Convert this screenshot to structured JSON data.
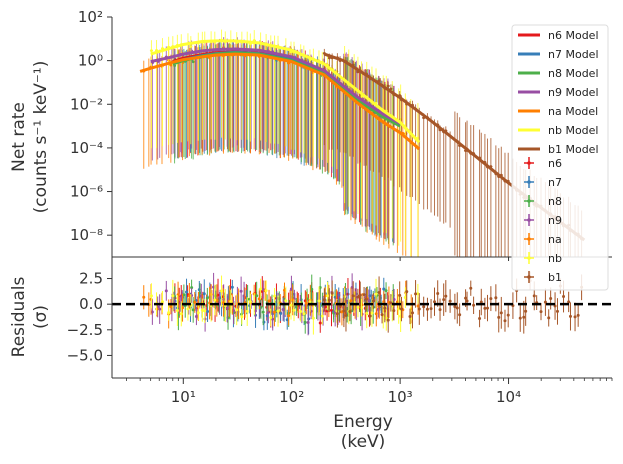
{
  "chart_data": [
    {
      "type": "line",
      "panel": "spectrum",
      "ylabel_line1": "Net rate",
      "ylabel_line2": "(counts s⁻¹ keV⁻¹)",
      "x_scale": "log",
      "y_scale": "log",
      "xlim": [
        2.2,
        90000
      ],
      "ylim": [
        1e-09,
        100
      ],
      "y_ticks": [
        {
          "value": 100,
          "label": "10²"
        },
        {
          "value": 1,
          "label": "10⁰"
        },
        {
          "value": 0.01,
          "label": "10⁻²"
        },
        {
          "value": 0.0001,
          "label": "10⁻⁴"
        },
        {
          "value": 1e-06,
          "label": "10⁻⁶"
        },
        {
          "value": 1e-08,
          "label": "10⁻⁸"
        }
      ],
      "legend_position": "top-right",
      "model_legend": [
        {
          "name": "n6 Model",
          "color": "#e41a1c"
        },
        {
          "name": "n7 Model",
          "color": "#377eb8"
        },
        {
          "name": "n8 Model",
          "color": "#4daf4a"
        },
        {
          "name": "n9 Model",
          "color": "#984ea3"
        },
        {
          "name": "na Model",
          "color": "#ff7f00"
        },
        {
          "name": "nb Model",
          "color": "#ffff33"
        },
        {
          "name": "b1 Model",
          "color": "#a65628"
        }
      ],
      "data_legend": [
        {
          "name": "n6",
          "color": "#e41a1c"
        },
        {
          "name": "n7",
          "color": "#377eb8"
        },
        {
          "name": "n8",
          "color": "#4daf4a"
        },
        {
          "name": "n9",
          "color": "#984ea3"
        },
        {
          "name": "na",
          "color": "#ff7f00"
        },
        {
          "name": "nb",
          "color": "#ffff33"
        },
        {
          "name": "b1",
          "color": "#a65628"
        }
      ],
      "series": [
        {
          "name": "n6 Model",
          "color": "#e41a1c",
          "x": [
            8,
            10,
            15,
            20,
            30,
            50,
            100,
            200,
            400,
            700,
            1000
          ],
          "y": [
            0.9,
            1.3,
            1.9,
            2.3,
            2.5,
            2.2,
            1.2,
            0.3,
            0.02,
            0.003,
            0.0012
          ]
        },
        {
          "name": "n7 Model",
          "color": "#377eb8",
          "x": [
            8,
            10,
            15,
            20,
            30,
            50,
            100,
            200,
            400,
            700,
            1000
          ],
          "y": [
            0.8,
            1.1,
            1.7,
            2.1,
            2.4,
            2.1,
            1.1,
            0.28,
            0.018,
            0.0028,
            0.0011
          ]
        },
        {
          "name": "n8 Model",
          "color": "#4daf4a",
          "x": [
            8,
            10,
            15,
            20,
            30,
            50,
            100,
            200,
            400,
            700,
            1000
          ],
          "y": [
            0.7,
            1.0,
            1.6,
            2.0,
            2.3,
            2.0,
            1.0,
            0.26,
            0.016,
            0.0026,
            0.001
          ]
        },
        {
          "name": "n9 Model",
          "color": "#984ea3",
          "x": [
            5,
            8,
            10,
            15,
            20,
            30,
            50,
            100,
            200,
            400,
            700,
            1000
          ],
          "y": [
            0.9,
            1.5,
            2.0,
            2.8,
            3.2,
            3.4,
            3.0,
            1.5,
            0.35,
            0.022,
            0.0035,
            0.0013
          ]
        },
        {
          "name": "na Model",
          "color": "#ff7f00",
          "x": [
            4,
            5,
            8,
            10,
            15,
            20,
            30,
            50,
            100,
            200,
            400,
            700,
            1000,
            1500
          ],
          "y": [
            0.32,
            0.45,
            0.85,
            1.1,
            1.5,
            1.8,
            2.0,
            1.8,
            0.9,
            0.22,
            0.012,
            0.0015,
            0.0005,
            9e-05
          ]
        },
        {
          "name": "nb Model",
          "color": "#ffff33",
          "x": [
            5,
            8,
            10,
            15,
            20,
            30,
            50,
            100,
            200,
            400,
            700,
            1000,
            1500
          ],
          "y": [
            2.0,
            4.0,
            5.5,
            7.5,
            8.0,
            8.0,
            6.5,
            3.0,
            0.7,
            0.045,
            0.005,
            0.0015,
            0.00018
          ]
        },
        {
          "name": "b1 Model",
          "color": "#a65628",
          "x": [
            200,
            300,
            500,
            1000,
            2000,
            5000,
            10000,
            20000,
            50000
          ],
          "y": [
            2.0,
            1.0,
            0.2,
            0.02,
            0.0015,
            4e-05,
            2.5e-06,
            1.8e-07,
            6e-09
          ]
        }
      ]
    },
    {
      "type": "scatter",
      "panel": "residuals",
      "ylabel_line1": "Residuals",
      "ylabel_line2": "(σ)",
      "xlabel_line1": "Energy",
      "xlabel_line2": "(keV)",
      "x_scale": "log",
      "xlim": [
        2.2,
        90000
      ],
      "ylim": [
        -7.2,
        4.6
      ],
      "zero_line": 0,
      "y_ticks": [
        {
          "value": 2.5,
          "label": "2.5"
        },
        {
          "value": 0,
          "label": "0.0"
        },
        {
          "value": -2.5,
          "label": "−2.5"
        },
        {
          "value": -5,
          "label": "−5.0"
        }
      ],
      "x_ticks": [
        {
          "value": 10,
          "label": "10¹"
        },
        {
          "value": 100,
          "label": "10²"
        },
        {
          "value": 1000,
          "label": "10³"
        },
        {
          "value": 10000,
          "label": "10⁴"
        }
      ]
    }
  ]
}
